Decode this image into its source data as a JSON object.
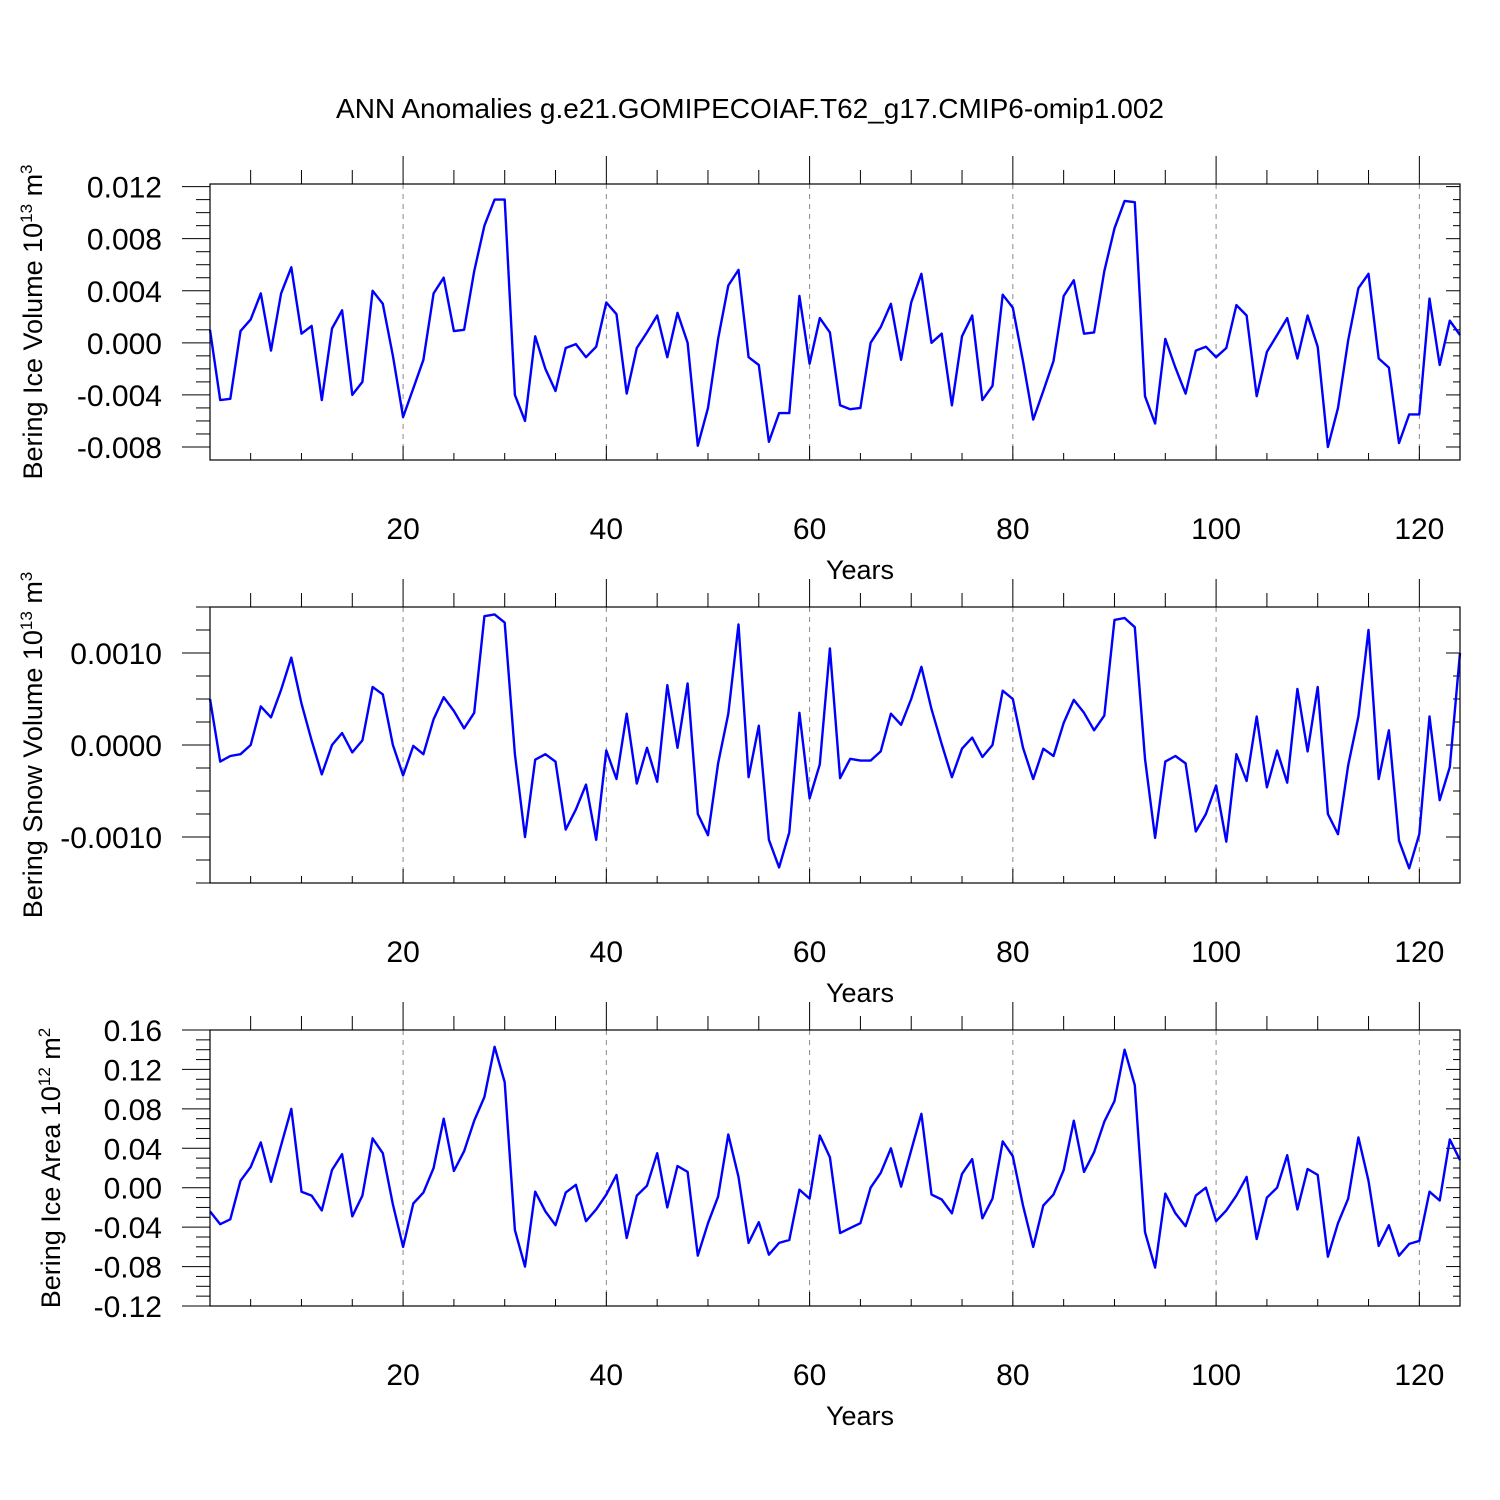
{
  "chart_data": {
    "title": "ANN Anomalies g.e21.GOMIPECOIAF.T62_g17.CMIP6-omip1.002",
    "x": {
      "label": "Years",
      "range": [
        1,
        124
      ],
      "ticks": [
        20,
        40,
        60,
        80,
        100,
        120
      ],
      "tick_labels": [
        "20",
        "40",
        "60",
        "80",
        "100",
        "120"
      ]
    },
    "panels": [
      {
        "type": "line",
        "name": "Bering Ice Volume",
        "ylabel_main": "Bering Ice Volume 10",
        "ylabel_exp": "13",
        "ylabel_unit": " m",
        "ylabel_unit_exp": "3",
        "ylim": [
          -0.009,
          0.0122
        ],
        "ticks": [
          -0.008,
          -0.004,
          0.0,
          0.004,
          0.008,
          0.012
        ],
        "tick_labels": [
          "-0.008",
          "-0.004",
          "0.000",
          "0.004",
          "0.008",
          "0.012"
        ],
        "values": [
          0.001,
          -0.0044,
          -0.0043,
          0.0009,
          0.0018,
          0.0038,
          -0.0006,
          0.0038,
          0.0058,
          0.0007,
          0.0013,
          -0.0044,
          0.0011,
          0.0025,
          -0.004,
          -0.003,
          0.004,
          0.003,
          -0.001,
          -0.0057,
          -0.0035,
          -0.0013,
          0.0038,
          0.005,
          0.0009,
          0.001,
          0.0055,
          0.009,
          0.011,
          0.011,
          -0.004,
          -0.006,
          0.0005,
          -0.002,
          -0.0037,
          -0.0004,
          -0.0001,
          -0.0011,
          -0.0003,
          0.0031,
          0.0022,
          -0.0039,
          -0.0004,
          0.0008,
          0.0021,
          -0.0011,
          0.0023,
          0.0,
          -0.0079,
          -0.005,
          0.0003,
          0.0044,
          0.0056,
          -0.0011,
          -0.0017,
          -0.0076,
          -0.0054,
          -0.0054,
          0.0036,
          -0.0016,
          0.0019,
          0.0008,
          -0.0048,
          -0.0051,
          -0.005,
          0.0,
          0.0012,
          0.003,
          -0.0013,
          0.0031,
          0.0053,
          0.0,
          0.0007,
          -0.0048,
          0.0005,
          0.0021,
          -0.0044,
          -0.0033,
          0.0037,
          0.0027,
          -0.0014,
          -0.0059,
          -0.0037,
          -0.0014,
          0.0036,
          0.0048,
          0.0007,
          0.0008,
          0.0055,
          0.0088,
          0.0109,
          0.0108,
          -0.0041,
          -0.0062,
          0.0003,
          -0.0019,
          -0.0039,
          -0.0006,
          -0.0003,
          -0.0011,
          -0.0004,
          0.0029,
          0.0021,
          -0.0041,
          -0.0007,
          0.0006,
          0.0019,
          -0.0012,
          0.0021,
          -0.0003,
          -0.008,
          -0.005,
          0.0002,
          0.0042,
          0.0053,
          -0.0012,
          -0.0019,
          -0.0077,
          -0.0055,
          -0.0055,
          0.0034,
          -0.0017,
          0.0017,
          0.0006
        ]
      },
      {
        "type": "line",
        "name": "Bering Snow Volume",
        "ylabel_main": "Bering Snow Volume 10",
        "ylabel_exp": "13",
        "ylabel_unit": " m",
        "ylabel_unit_exp": "3",
        "ylim": [
          -0.0015,
          0.0015
        ],
        "ticks": [
          -0.001,
          0.0,
          0.001
        ],
        "tick_labels": [
          "-0.0010",
          "0.0000",
          "0.0010"
        ],
        "values": [
          0.0005,
          -0.00018,
          -0.00012,
          -0.0001,
          0.0,
          0.00042,
          0.0003,
          0.0006,
          0.00095,
          0.00045,
          5e-05,
          -0.00032,
          0.0,
          0.00013,
          -8e-05,
          5e-05,
          0.00063,
          0.00055,
          0.0,
          -0.00033,
          -1e-05,
          -0.0001,
          0.00028,
          0.00052,
          0.00037,
          0.00018,
          0.00035,
          0.0014,
          0.00142,
          0.00133,
          -0.0001,
          -0.001,
          -0.00016,
          -0.0001,
          -0.00018,
          -0.00092,
          -0.0007,
          -0.00043,
          -0.00103,
          -6e-05,
          -0.00037,
          0.00034,
          -0.00042,
          -3e-05,
          -0.0004,
          0.00065,
          -3e-05,
          0.00067,
          -0.00075,
          -0.00098,
          -0.0002,
          0.00034,
          0.00131,
          -0.00035,
          0.00021,
          -0.00103,
          -0.00133,
          -0.00095,
          0.00035,
          -0.00058,
          -0.00021,
          0.00105,
          -0.00036,
          -0.00015,
          -0.00017,
          -0.00017,
          -7e-05,
          0.00034,
          0.00022,
          0.0005,
          0.00085,
          0.00039,
          1e-05,
          -0.00035,
          -4e-05,
          8e-05,
          -0.00013,
          0.0,
          0.00059,
          0.0005,
          -3e-05,
          -0.00037,
          -4e-05,
          -0.00012,
          0.00024,
          0.00049,
          0.00035,
          0.00016,
          0.00032,
          0.00136,
          0.00138,
          0.00128,
          -0.00015,
          -0.00101,
          -0.00018,
          -0.00012,
          -0.0002,
          -0.00094,
          -0.00075,
          -0.00044,
          -0.00105,
          -0.0001,
          -0.00039,
          0.00031,
          -0.00046,
          -6e-05,
          -0.00041,
          0.00061,
          -7e-05,
          0.00063,
          -0.00075,
          -0.00097,
          -0.00022,
          0.00031,
          0.00125,
          -0.00037,
          0.00016,
          -0.00104,
          -0.00134,
          -0.00097,
          0.00031,
          -0.0006,
          -0.00024,
          0.001
        ]
      },
      {
        "type": "line",
        "name": "Bering Ice Area",
        "ylabel_main": "Bering Ice Area 10",
        "ylabel_exp": "12",
        "ylabel_unit": " m",
        "ylabel_unit_exp": "2",
        "ylim": [
          -0.12,
          0.16
        ],
        "ticks": [
          -0.12,
          -0.08,
          -0.04,
          0.0,
          0.04,
          0.08,
          0.12,
          0.16
        ],
        "tick_labels": [
          "-0.12",
          "-0.08",
          "-0.04",
          "0.00",
          "0.04",
          "0.08",
          "0.12",
          "0.16"
        ],
        "values": [
          -0.024,
          -0.037,
          -0.032,
          0.007,
          0.021,
          0.046,
          0.006,
          0.043,
          0.08,
          -0.004,
          -0.008,
          -0.023,
          0.018,
          0.034,
          -0.029,
          -0.008,
          0.05,
          0.035,
          -0.017,
          -0.06,
          -0.016,
          -0.005,
          0.02,
          0.07,
          0.017,
          0.037,
          0.068,
          0.092,
          0.143,
          0.107,
          -0.043,
          -0.08,
          -0.004,
          -0.024,
          -0.038,
          -0.005,
          0.003,
          -0.034,
          -0.022,
          -0.007,
          0.013,
          -0.051,
          -0.008,
          0.002,
          0.035,
          -0.02,
          0.022,
          0.016,
          -0.069,
          -0.036,
          -0.009,
          0.054,
          0.011,
          -0.056,
          -0.035,
          -0.068,
          -0.056,
          -0.053,
          -0.002,
          -0.011,
          0.053,
          0.031,
          -0.046,
          -0.041,
          -0.036,
          0.0,
          0.015,
          0.04,
          0.001,
          0.038,
          0.075,
          -0.007,
          -0.012,
          -0.026,
          0.014,
          0.029,
          -0.031,
          -0.011,
          0.047,
          0.032,
          -0.018,
          -0.06,
          -0.018,
          -0.007,
          0.018,
          0.068,
          0.016,
          0.036,
          0.067,
          0.088,
          0.14,
          0.104,
          -0.045,
          -0.081,
          -0.006,
          -0.026,
          -0.039,
          -0.008,
          0.0,
          -0.034,
          -0.023,
          -0.008,
          0.011,
          -0.052,
          -0.01,
          0.0,
          0.033,
          -0.022,
          0.019,
          0.013,
          -0.07,
          -0.036,
          -0.011,
          0.051,
          0.007,
          -0.059,
          -0.038,
          -0.069,
          -0.057,
          -0.054,
          -0.004,
          -0.013,
          0.049,
          0.028
        ]
      }
    ]
  }
}
